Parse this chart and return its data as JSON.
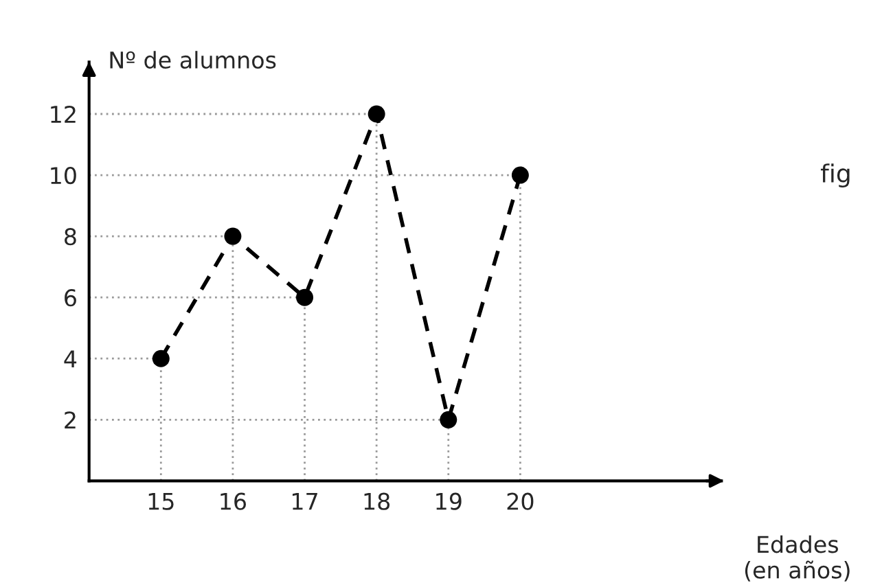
{
  "chart_data": {
    "type": "line",
    "ylabel": "Nº de alumnos",
    "xlabel": "Edades\n(en años)",
    "annotations": [
      "fig"
    ],
    "x": [
      15,
      16,
      17,
      18,
      19,
      20
    ],
    "series": [
      {
        "x": [
          14,
          15
        ],
        "values": [
          4,
          4
        ],
        "color": "#999999",
        "line_style": "dotted",
        "marker": "none"
      },
      {
        "x": [
          15,
          15
        ],
        "values": [
          0,
          4
        ],
        "color": "#999999",
        "line_style": "dotted",
        "marker": "none"
      },
      {
        "x": [
          14,
          16
        ],
        "values": [
          8,
          8
        ],
        "color": "#999999",
        "line_style": "dotted",
        "marker": "none"
      },
      {
        "x": [
          16,
          16
        ],
        "values": [
          0,
          8
        ],
        "color": "#999999",
        "line_style": "dotted",
        "marker": "none"
      },
      {
        "x": [
          14,
          17
        ],
        "values": [
          6,
          6
        ],
        "color": "#999999",
        "line_style": "dotted",
        "marker": "none"
      },
      {
        "x": [
          17,
          17
        ],
        "values": [
          0,
          6
        ],
        "color": "#999999",
        "line_style": "dotted",
        "marker": "none"
      },
      {
        "x": [
          14,
          18
        ],
        "values": [
          12,
          12
        ],
        "color": "#999999",
        "line_style": "dotted",
        "marker": "none"
      },
      {
        "x": [
          18,
          18
        ],
        "values": [
          0,
          12
        ],
        "color": "#999999",
        "line_style": "dotted",
        "marker": "none"
      },
      {
        "x": [
          14,
          19
        ],
        "values": [
          2,
          2
        ],
        "color": "#999999",
        "line_style": "dotted",
        "marker": "none"
      },
      {
        "x": [
          19,
          19
        ],
        "values": [
          0,
          2
        ],
        "color": "#999999",
        "line_style": "dotted",
        "marker": "none"
      },
      {
        "x": [
          14,
          20
        ],
        "values": [
          10,
          10
        ],
        "color": "#999999",
        "line_style": "dotted",
        "marker": "none"
      },
      {
        "x": [
          20,
          20
        ],
        "values": [
          0,
          10
        ],
        "color": "#999999",
        "line_style": "dotted",
        "marker": "none"
      },
      {
        "color": "#000000",
        "values": [
          4,
          8,
          6,
          12,
          2,
          10
        ]
      }
    ],
    "xlim": [
      14,
      22.8
    ],
    "xticks": [
      15,
      16,
      17,
      18,
      19,
      20
    ],
    "ylim": [
      0,
      13.7
    ],
    "yticks": [
      2,
      4,
      6,
      8,
      10,
      12
    ],
    "marker": "circle",
    "line_style": "dashed",
    "grid": false,
    "legend": false
  }
}
